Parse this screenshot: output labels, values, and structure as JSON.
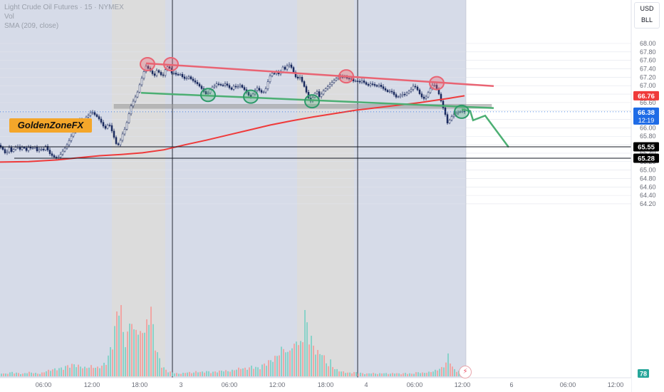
{
  "header": {
    "title": "Light Crude Oil Futures · 15 · NYMEX",
    "volume_label": "Vol",
    "indicator_label": "SMA (209, close)"
  },
  "watermark": "GoldenZoneFX",
  "scale_box": {
    "currency": "USD",
    "unit": "BLL"
  },
  "colors": {
    "up": "#26a69a",
    "down": "#ef5350",
    "candle_body": "#1a2a5e",
    "sma": "#ef3a3a",
    "resistance": "#e96473",
    "support": "#4caf73",
    "zone": "#9e9e9e",
    "session_shade": "#d6dbe8"
  },
  "chart_data": {
    "type": "candlestick",
    "title": "Light Crude Oil Futures · 15 · NYMEX",
    "y_ticks": [
      68.0,
      67.8,
      67.6,
      67.4,
      67.2,
      67.0,
      66.8,
      66.6,
      66.4,
      66.2,
      66.0,
      65.8,
      65.6,
      65.4,
      65.2,
      65.0,
      64.8,
      64.6,
      64.4,
      64.2
    ],
    "ylim": [
      64.1,
      68.2
    ],
    "x_ticks": [
      "06:00",
      "12:00",
      "18:00",
      "3",
      "06:00",
      "12:00",
      "18:00",
      "4",
      "06:00",
      "12:00",
      "6",
      "06:00",
      "12:00"
    ],
    "price_path": [
      [
        0,
        65.58
      ],
      [
        6,
        65.48
      ],
      [
        10,
        65.36
      ],
      [
        14,
        65.55
      ],
      [
        18,
        65.42
      ],
      [
        22,
        65.53
      ],
      [
        26,
        65.56
      ],
      [
        30,
        65.48
      ],
      [
        34,
        65.57
      ],
      [
        38,
        65.45
      ],
      [
        42,
        65.55
      ],
      [
        46,
        65.5
      ],
      [
        50,
        65.56
      ],
      [
        54,
        65.44
      ],
      [
        58,
        65.52
      ],
      [
        62,
        65.46
      ],
      [
        66,
        65.58
      ],
      [
        70,
        65.41
      ],
      [
        74,
        65.35
      ],
      [
        78,
        65.3
      ],
      [
        82,
        65.27
      ],
      [
        86,
        65.36
      ],
      [
        90,
        65.46
      ],
      [
        94,
        65.55
      ],
      [
        98,
        65.68
      ],
      [
        102,
        65.82
      ],
      [
        106,
        65.93
      ],
      [
        110,
        66.05
      ],
      [
        114,
        66.2
      ],
      [
        118,
        66.1
      ],
      [
        122,
        66.25
      ],
      [
        126,
        66.3
      ],
      [
        130,
        66.39
      ],
      [
        134,
        66.32
      ],
      [
        138,
        66.26
      ],
      [
        142,
        66.18
      ],
      [
        146,
        66.05
      ],
      [
        150,
        65.98
      ],
      [
        154,
        66.12
      ],
      [
        158,
        65.95
      ],
      [
        162,
        65.75
      ],
      [
        166,
        65.55
      ],
      [
        170,
        65.68
      ],
      [
        174,
        65.88
      ],
      [
        178,
        66.02
      ],
      [
        182,
        66.3
      ],
      [
        186,
        66.55
      ],
      [
        190,
        66.68
      ],
      [
        194,
        66.82
      ],
      [
        198,
        67.05
      ],
      [
        202,
        67.25
      ],
      [
        206,
        67.47
      ],
      [
        210,
        67.4
      ],
      [
        214,
        67.32
      ],
      [
        218,
        67.22
      ],
      [
        222,
        67.38
      ],
      [
        226,
        67.28
      ],
      [
        230,
        67.22
      ],
      [
        234,
        67.4
      ],
      [
        238,
        67.48
      ],
      [
        242,
        67.3
      ],
      [
        246,
        67.3
      ],
      [
        250,
        67.25
      ],
      [
        254,
        67.28
      ],
      [
        258,
        67.2
      ],
      [
        262,
        67.15
      ],
      [
        266,
        67.22
      ],
      [
        270,
        67.15
      ],
      [
        274,
        67.1
      ],
      [
        278,
        67.05
      ],
      [
        282,
        66.98
      ],
      [
        286,
        66.9
      ],
      [
        290,
        66.8
      ],
      [
        294,
        66.83
      ],
      [
        298,
        66.96
      ],
      [
        302,
        66.98
      ],
      [
        306,
        67.05
      ],
      [
        310,
        67.02
      ],
      [
        314,
        67.0
      ],
      [
        318,
        67.05
      ],
      [
        322,
        66.98
      ],
      [
        326,
        66.9
      ],
      [
        330,
        67.0
      ],
      [
        334,
        66.95
      ],
      [
        338,
        67.02
      ],
      [
        342,
        66.95
      ],
      [
        346,
        66.88
      ],
      [
        350,
        66.78
      ],
      [
        354,
        66.72
      ],
      [
        358,
        66.85
      ],
      [
        362,
        66.95
      ],
      [
        366,
        66.88
      ],
      [
        370,
        66.82
      ],
      [
        374,
        66.9
      ],
      [
        378,
        67.12
      ],
      [
        382,
        67.3
      ],
      [
        386,
        67.28
      ],
      [
        390,
        67.32
      ],
      [
        394,
        67.25
      ],
      [
        398,
        67.45
      ],
      [
        402,
        67.38
      ],
      [
        406,
        67.52
      ],
      [
        410,
        67.45
      ],
      [
        414,
        67.3
      ],
      [
        418,
        67.15
      ],
      [
        422,
        67.22
      ],
      [
        426,
        67.08
      ],
      [
        430,
        66.92
      ],
      [
        434,
        66.72
      ],
      [
        438,
        66.62
      ],
      [
        442,
        66.78
      ],
      [
        446,
        66.88
      ],
      [
        450,
        66.72
      ],
      [
        454,
        66.85
      ],
      [
        458,
        66.92
      ],
      [
        462,
        66.98
      ],
      [
        466,
        67.05
      ],
      [
        470,
        67.12
      ],
      [
        474,
        67.18
      ],
      [
        478,
        67.22
      ],
      [
        482,
        67.2
      ],
      [
        486,
        67.22
      ],
      [
        490,
        67.15
      ],
      [
        494,
        67.18
      ],
      [
        498,
        67.1
      ],
      [
        502,
        67.12
      ],
      [
        506,
        67.08
      ],
      [
        510,
        67.12
      ],
      [
        514,
        67.05
      ],
      [
        518,
        67.0
      ],
      [
        522,
        67.05
      ],
      [
        526,
        67.02
      ],
      [
        530,
        66.98
      ],
      [
        534,
        67.02
      ],
      [
        538,
        66.95
      ],
      [
        542,
        66.9
      ],
      [
        546,
        66.85
      ],
      [
        550,
        66.88
      ],
      [
        554,
        66.8
      ],
      [
        558,
        66.72
      ],
      [
        562,
        66.75
      ],
      [
        566,
        66.8
      ],
      [
        570,
        66.78
      ],
      [
        574,
        66.85
      ],
      [
        578,
        66.9
      ],
      [
        582,
        67.0
      ],
      [
        586,
        66.95
      ],
      [
        590,
        66.82
      ],
      [
        594,
        66.72
      ],
      [
        598,
        66.68
      ],
      [
        602,
        66.82
      ],
      [
        606,
        66.95
      ],
      [
        610,
        67.05
      ],
      [
        614,
        66.95
      ],
      [
        618,
        66.78
      ],
      [
        622,
        66.55
      ],
      [
        626,
        66.35
      ],
      [
        630,
        66.08
      ],
      [
        634,
        66.25
      ],
      [
        638,
        66.3
      ],
      [
        642,
        66.35
      ],
      [
        646,
        66.38
      ],
      [
        650,
        66.4
      ],
      [
        653,
        66.38
      ]
    ],
    "volume_path": [
      [
        0,
        0.04
      ],
      [
        8,
        0.03
      ],
      [
        16,
        0.05
      ],
      [
        24,
        0.04
      ],
      [
        32,
        0.03
      ],
      [
        40,
        0.05
      ],
      [
        48,
        0.04
      ],
      [
        56,
        0.03
      ],
      [
        64,
        0.06
      ],
      [
        72,
        0.08
      ],
      [
        80,
        0.09
      ],
      [
        88,
        0.1
      ],
      [
        96,
        0.13
      ],
      [
        104,
        0.14
      ],
      [
        112,
        0.12
      ],
      [
        120,
        0.1
      ],
      [
        128,
        0.12
      ],
      [
        136,
        0.1
      ],
      [
        144,
        0.13
      ],
      [
        150,
        0.18
      ],
      [
        156,
        0.35
      ],
      [
        162,
        0.6
      ],
      [
        168,
        1.0
      ],
      [
        172,
        0.55
      ],
      [
        176,
        0.42
      ],
      [
        180,
        0.5
      ],
      [
        184,
        0.78
      ],
      [
        188,
        0.5
      ],
      [
        192,
        0.62
      ],
      [
        196,
        0.45
      ],
      [
        200,
        0.58
      ],
      [
        204,
        0.52
      ],
      [
        208,
        0.7
      ],
      [
        212,
        0.82
      ],
      [
        216,
        0.48
      ],
      [
        220,
        0.3
      ],
      [
        224,
        0.2
      ],
      [
        228,
        0.12
      ],
      [
        232,
        0.08
      ],
      [
        236,
        0.06
      ],
      [
        240,
        0.05
      ],
      [
        246,
        0.04
      ],
      [
        252,
        0.03
      ],
      [
        258,
        0.04
      ],
      [
        264,
        0.05
      ],
      [
        270,
        0.04
      ],
      [
        276,
        0.06
      ],
      [
        282,
        0.05
      ],
      [
        290,
        0.06
      ],
      [
        298,
        0.05
      ],
      [
        306,
        0.06
      ],
      [
        314,
        0.07
      ],
      [
        322,
        0.06
      ],
      [
        330,
        0.08
      ],
      [
        338,
        0.1
      ],
      [
        346,
        0.09
      ],
      [
        354,
        0.12
      ],
      [
        362,
        0.1
      ],
      [
        370,
        0.14
      ],
      [
        378,
        0.18
      ],
      [
        386,
        0.22
      ],
      [
        392,
        0.28
      ],
      [
        398,
        0.35
      ],
      [
        404,
        0.26
      ],
      [
        408,
        0.38
      ],
      [
        412,
        0.3
      ],
      [
        416,
        0.5
      ],
      [
        420,
        0.32
      ],
      [
        424,
        0.45
      ],
      [
        428,
        0.75
      ],
      [
        432,
        0.55
      ],
      [
        436,
        0.48
      ],
      [
        440,
        0.35
      ],
      [
        444,
        0.32
      ],
      [
        448,
        0.25
      ],
      [
        452,
        0.3
      ],
      [
        456,
        0.2
      ],
      [
        460,
        0.12
      ],
      [
        464,
        0.18
      ],
      [
        468,
        0.1
      ],
      [
        472,
        0.08
      ],
      [
        478,
        0.06
      ],
      [
        484,
        0.05
      ],
      [
        490,
        0.04
      ],
      [
        498,
        0.05
      ],
      [
        506,
        0.04
      ],
      [
        514,
        0.03
      ],
      [
        522,
        0.04
      ],
      [
        530,
        0.03
      ],
      [
        538,
        0.04
      ],
      [
        546,
        0.03
      ],
      [
        554,
        0.04
      ],
      [
        562,
        0.03
      ],
      [
        570,
        0.04
      ],
      [
        578,
        0.03
      ],
      [
        586,
        0.05
      ],
      [
        594,
        0.04
      ],
      [
        602,
        0.05
      ],
      [
        608,
        0.06
      ],
      [
        614,
        0.08
      ],
      [
        620,
        0.1
      ],
      [
        626,
        0.16
      ],
      [
        630,
        0.28
      ],
      [
        634,
        0.12
      ],
      [
        638,
        0.08
      ],
      [
        644,
        0.06
      ],
      [
        650,
        0.05
      ]
    ],
    "sma_209": [
      [
        0,
        65.19
      ],
      [
        40,
        65.2
      ],
      [
        80,
        65.24
      ],
      [
        110,
        65.29
      ],
      [
        140,
        65.34
      ],
      [
        170,
        65.37
      ],
      [
        200,
        65.41
      ],
      [
        230,
        65.48
      ],
      [
        260,
        65.6
      ],
      [
        290,
        65.71
      ],
      [
        320,
        65.83
      ],
      [
        350,
        65.95
      ],
      [
        380,
        66.07
      ],
      [
        410,
        66.17
      ],
      [
        440,
        66.26
      ],
      [
        470,
        66.34
      ],
      [
        500,
        66.42
      ],
      [
        530,
        66.48
      ],
      [
        560,
        66.54
      ],
      [
        590,
        66.6
      ],
      [
        610,
        66.65
      ],
      [
        630,
        66.7
      ],
      [
        652,
        66.76
      ]
    ],
    "shaded_sessions": [
      [
        157,
        232
      ],
      [
        417,
        497
      ]
    ],
    "session_dividers": [
      242,
      502,
      654
    ],
    "resistance_line": [
      [
        205,
        67.53
      ],
      [
        693,
        66.99
      ]
    ],
    "support_line": [
      [
        198,
        66.83
      ],
      [
        693,
        66.47
      ]
    ],
    "demand_zone": {
      "x0": 160,
      "x1": 690,
      "top": 66.56,
      "bottom": 66.46
    },
    "projection_path": [
      [
        648,
        66.44
      ],
      [
        660,
        66.4
      ],
      [
        664,
        66.18
      ],
      [
        681,
        66.29
      ],
      [
        714,
        65.54
      ]
    ],
    "horizontal_levels": [
      {
        "y": 65.55,
        "x0": 0,
        "label": "65.55"
      },
      {
        "y": 65.28,
        "x0": 20,
        "label": "65.28"
      }
    ],
    "dotted_last_price": 66.38,
    "price_labels": [
      {
        "value": "66.76",
        "y": 66.76,
        "color": "#ef3a3a"
      },
      {
        "value": "66.38",
        "time": "12:19",
        "y": 66.38,
        "color": "#1e6be6"
      },
      {
        "value": "65.55",
        "y": 65.55,
        "color": "#000000"
      },
      {
        "value": "65.28",
        "y": 65.28,
        "color": "#000000"
      }
    ],
    "volume_label": "78",
    "red_circles": [
      [
        207,
        67.51
      ],
      [
        240,
        67.51
      ],
      [
        486,
        67.22
      ],
      [
        613,
        67.06
      ]
    ],
    "green_circles": [
      [
        292,
        66.78
      ],
      [
        352,
        66.74
      ],
      [
        438,
        66.63
      ],
      [
        648,
        66.38
      ]
    ]
  }
}
